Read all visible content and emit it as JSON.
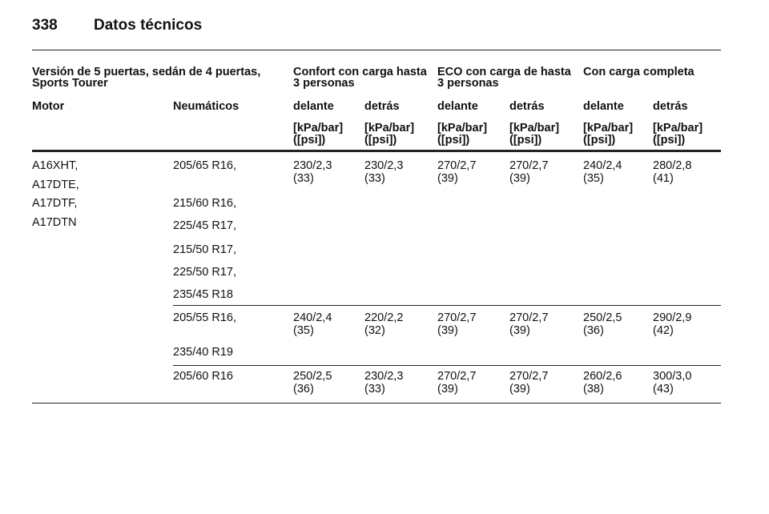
{
  "header": {
    "page_number": "338",
    "title": "Datos técnicos"
  },
  "table": {
    "group_headers": [
      {
        "lines": [
          "Versión de 5 puertas, sedán de 4 puertas,",
          "Sports Tourer"
        ]
      },
      {
        "lines": [
          "Confort con carga hasta",
          "3 personas"
        ]
      },
      {
        "lines": [
          "ECO con carga de hasta",
          "3 personas"
        ]
      },
      {
        "lines": [
          "Con carga completa"
        ]
      }
    ],
    "columns": [
      "Motor",
      "Neumáticos",
      "delante",
      "detrás",
      "delante",
      "detrás",
      "delante",
      "detrás"
    ],
    "units": [
      [
        "[kPa/bar]",
        "([psi])"
      ],
      [
        "[kPa/bar]",
        "([psi])"
      ],
      [
        "[kPa/bar]",
        "([psi])"
      ],
      [
        "[kPa/bar]",
        "([psi])"
      ],
      [
        "[kPa/bar]",
        "([psi])"
      ],
      [
        "[kPa/bar]",
        "([psi])"
      ]
    ],
    "rows": [
      {
        "motor": [
          "A16XHT,",
          "A17DTE,",
          "A17DTF,",
          "A17DTN"
        ],
        "tires": [
          "205/65 R16,",
          "215/60 R16,",
          "225/45 R17,",
          "215/50 R17,",
          "225/50 R17,",
          "235/45 R18"
        ],
        "values": [
          [
            "230/2,3",
            "(33)"
          ],
          [
            "230/2,3",
            "(33)"
          ],
          [
            "270/2,7",
            "(39)"
          ],
          [
            "270/2,7",
            "(39)"
          ],
          [
            "240/2,4",
            "(35)"
          ],
          [
            "280/2,8",
            "(41)"
          ]
        ]
      },
      {
        "tires": [
          "205/55 R16,",
          "235/40 R19"
        ],
        "values": [
          [
            "240/2,4",
            "(35)"
          ],
          [
            "220/2,2",
            "(32)"
          ],
          [
            "270/2,7",
            "(39)"
          ],
          [
            "270/2,7",
            "(39)"
          ],
          [
            "250/2,5",
            "(36)"
          ],
          [
            "290/2,9",
            "(42)"
          ]
        ]
      },
      {
        "tires": [
          "205/60 R16"
        ],
        "values": [
          [
            "250/2,5",
            "(36)"
          ],
          [
            "230/2,3",
            "(33)"
          ],
          [
            "270/2,7",
            "(39)"
          ],
          [
            "270/2,7",
            "(39)"
          ],
          [
            "260/2,6",
            "(38)"
          ],
          [
            "300/3,0",
            "(43)"
          ]
        ]
      }
    ]
  }
}
